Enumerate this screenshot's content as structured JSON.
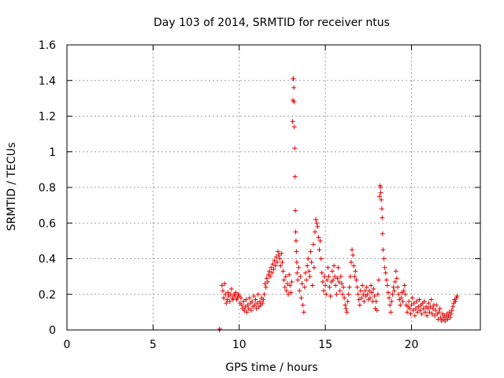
{
  "chart_data": {
    "type": "scatter",
    "title": "Day 103 of 2014, SRMTID for receiver ntus",
    "xlabel": "GPS time / hours",
    "ylabel": "SRMTID / TECUs",
    "xlim": [
      0,
      24
    ],
    "ylim": [
      0,
      1.6
    ],
    "xticks": [
      0,
      5,
      10,
      15,
      20
    ],
    "xtick_labels": [
      "0",
      "5",
      "10",
      "15",
      "20"
    ],
    "yticks": [
      0,
      0.2,
      0.4,
      0.6,
      0.8,
      1.0,
      1.2,
      1.4,
      1.6
    ],
    "ytick_labels": [
      "0",
      "0.2",
      "0.4",
      "0.6",
      "0.8",
      "1",
      "1.2",
      "1.4",
      "1.6"
    ],
    "grid": true,
    "marker": "+",
    "color": "#e00000",
    "series": [
      {
        "name": "SRMTID",
        "points": [
          [
            8.85,
            0.0
          ],
          [
            8.87,
            0.005
          ],
          [
            9.0,
            0.25
          ],
          [
            9.05,
            0.22
          ],
          [
            9.1,
            0.18
          ],
          [
            9.15,
            0.26
          ],
          [
            9.2,
            0.2
          ],
          [
            9.25,
            0.15
          ],
          [
            9.3,
            0.17
          ],
          [
            9.35,
            0.21
          ],
          [
            9.4,
            0.19
          ],
          [
            9.45,
            0.16
          ],
          [
            9.5,
            0.2
          ],
          [
            9.55,
            0.23
          ],
          [
            9.6,
            0.18
          ],
          [
            9.65,
            0.17
          ],
          [
            9.7,
            0.2
          ],
          [
            9.75,
            0.19
          ],
          [
            9.8,
            0.21
          ],
          [
            9.85,
            0.17
          ],
          [
            9.9,
            0.18
          ],
          [
            9.95,
            0.2
          ],
          [
            10.0,
            0.19
          ],
          [
            10.05,
            0.15
          ],
          [
            10.1,
            0.18
          ],
          [
            10.15,
            0.14
          ],
          [
            10.2,
            0.12
          ],
          [
            10.25,
            0.16
          ],
          [
            10.3,
            0.11
          ],
          [
            10.35,
            0.13
          ],
          [
            10.4,
            0.17
          ],
          [
            10.45,
            0.1
          ],
          [
            10.5,
            0.14
          ],
          [
            10.55,
            0.12
          ],
          [
            10.6,
            0.18
          ],
          [
            10.65,
            0.15
          ],
          [
            10.7,
            0.11
          ],
          [
            10.75,
            0.16
          ],
          [
            10.8,
            0.13
          ],
          [
            10.85,
            0.19
          ],
          [
            10.9,
            0.14
          ],
          [
            10.95,
            0.17
          ],
          [
            11.0,
            0.12
          ],
          [
            11.05,
            0.15
          ],
          [
            11.1,
            0.2
          ],
          [
            11.15,
            0.13
          ],
          [
            11.2,
            0.16
          ],
          [
            11.25,
            0.14
          ],
          [
            11.3,
            0.18
          ],
          [
            11.35,
            0.15
          ],
          [
            11.4,
            0.17
          ],
          [
            11.45,
            0.2
          ],
          [
            11.5,
            0.26
          ],
          [
            11.55,
            0.24
          ],
          [
            11.6,
            0.29
          ],
          [
            11.65,
            0.27
          ],
          [
            11.7,
            0.31
          ],
          [
            11.75,
            0.33
          ],
          [
            11.8,
            0.3
          ],
          [
            11.85,
            0.35
          ],
          [
            11.9,
            0.32
          ],
          [
            11.95,
            0.37
          ],
          [
            12.0,
            0.34
          ],
          [
            12.05,
            0.39
          ],
          [
            12.1,
            0.36
          ],
          [
            12.15,
            0.41
          ],
          [
            12.2,
            0.38
          ],
          [
            12.25,
            0.44
          ],
          [
            12.3,
            0.42
          ],
          [
            12.35,
            0.4
          ],
          [
            12.4,
            0.36
          ],
          [
            12.45,
            0.43
          ],
          [
            12.5,
            0.38
          ],
          [
            12.55,
            0.33
          ],
          [
            12.6,
            0.28
          ],
          [
            12.65,
            0.24
          ],
          [
            12.7,
            0.3
          ],
          [
            12.75,
            0.22
          ],
          [
            12.8,
            0.26
          ],
          [
            12.85,
            0.2
          ],
          [
            12.9,
            0.31
          ],
          [
            12.95,
            0.25
          ],
          [
            13.0,
            0.21
          ],
          [
            13.05,
            0.27
          ],
          [
            13.1,
            1.17
          ],
          [
            13.12,
            1.29
          ],
          [
            13.13,
            1.41
          ],
          [
            13.15,
            1.41
          ],
          [
            13.17,
            1.36
          ],
          [
            13.18,
            1.28
          ],
          [
            13.2,
            1.14
          ],
          [
            13.22,
            1.02
          ],
          [
            13.24,
            0.86
          ],
          [
            13.26,
            0.67
          ],
          [
            13.28,
            0.55
          ],
          [
            13.3,
            0.5
          ],
          [
            13.32,
            0.44
          ],
          [
            13.34,
            0.38
          ],
          [
            13.36,
            0.32
          ],
          [
            13.4,
            0.28
          ],
          [
            13.45,
            0.35
          ],
          [
            13.5,
            0.22
          ],
          [
            13.55,
            0.3
          ],
          [
            13.6,
            0.18
          ],
          [
            13.65,
            0.26
          ],
          [
            13.7,
            0.14
          ],
          [
            13.75,
            0.1
          ],
          [
            13.8,
            0.24
          ],
          [
            13.85,
            0.32
          ],
          [
            13.9,
            0.28
          ],
          [
            13.95,
            0.36
          ],
          [
            14.0,
            0.4
          ],
          [
            14.05,
            0.33
          ],
          [
            14.1,
            0.3
          ],
          [
            14.15,
            0.44
          ],
          [
            14.2,
            0.38
          ],
          [
            14.25,
            0.25
          ],
          [
            14.3,
            0.48
          ],
          [
            14.35,
            0.35
          ],
          [
            14.4,
            0.55
          ],
          [
            14.45,
            0.62
          ],
          [
            14.5,
            0.6
          ],
          [
            14.55,
            0.58
          ],
          [
            14.6,
            0.52
          ],
          [
            14.65,
            0.45
          ],
          [
            14.7,
            0.5
          ],
          [
            14.75,
            0.4
          ],
          [
            14.8,
            0.32
          ],
          [
            14.85,
            0.27
          ],
          [
            14.9,
            0.22
          ],
          [
            14.95,
            0.3
          ],
          [
            15.0,
            0.25
          ],
          [
            15.05,
            0.2
          ],
          [
            15.1,
            0.28
          ],
          [
            15.15,
            0.35
          ],
          [
            15.2,
            0.3
          ],
          [
            15.25,
            0.24
          ],
          [
            15.3,
            0.19
          ],
          [
            15.35,
            0.27
          ],
          [
            15.4,
            0.33
          ],
          [
            15.45,
            0.28
          ],
          [
            15.5,
            0.36
          ],
          [
            15.55,
            0.3
          ],
          [
            15.6,
            0.25
          ],
          [
            15.65,
            0.2
          ],
          [
            15.7,
            0.29
          ],
          [
            15.75,
            0.35
          ],
          [
            15.8,
            0.27
          ],
          [
            15.85,
            0.22
          ],
          [
            15.9,
            0.3
          ],
          [
            15.95,
            0.26
          ],
          [
            16.0,
            0.2
          ],
          [
            16.05,
            0.24
          ],
          [
            16.1,
            0.18
          ],
          [
            16.15,
            0.14
          ],
          [
            16.2,
            0.12
          ],
          [
            16.25,
            0.1
          ],
          [
            16.3,
            0.16
          ],
          [
            16.35,
            0.2
          ],
          [
            16.4,
            0.24
          ],
          [
            16.45,
            0.3
          ],
          [
            16.5,
            0.38
          ],
          [
            16.55,
            0.45
          ],
          [
            16.6,
            0.42
          ],
          [
            16.65,
            0.36
          ],
          [
            16.7,
            0.3
          ],
          [
            16.75,
            0.33
          ],
          [
            16.8,
            0.28
          ],
          [
            16.85,
            0.24
          ],
          [
            16.9,
            0.2
          ],
          [
            16.95,
            0.17
          ],
          [
            17.0,
            0.14
          ],
          [
            17.05,
            0.22
          ],
          [
            17.1,
            0.18
          ],
          [
            17.15,
            0.25
          ],
          [
            17.2,
            0.2
          ],
          [
            17.25,
            0.16
          ],
          [
            17.3,
            0.22
          ],
          [
            17.35,
            0.19
          ],
          [
            17.4,
            0.24
          ],
          [
            17.45,
            0.2
          ],
          [
            17.5,
            0.17
          ],
          [
            17.55,
            0.22
          ],
          [
            17.6,
            0.18
          ],
          [
            17.65,
            0.25
          ],
          [
            17.7,
            0.21
          ],
          [
            17.75,
            0.16
          ],
          [
            17.8,
            0.23
          ],
          [
            17.85,
            0.19
          ],
          [
            17.9,
            0.12
          ],
          [
            17.95,
            0.16
          ],
          [
            18.0,
            0.11
          ],
          [
            18.05,
            0.2
          ],
          [
            18.1,
            0.28
          ],
          [
            18.15,
            0.75
          ],
          [
            18.18,
            0.81
          ],
          [
            18.2,
            0.8
          ],
          [
            18.22,
            0.77
          ],
          [
            18.25,
            0.73
          ],
          [
            18.28,
            0.68
          ],
          [
            18.3,
            0.63
          ],
          [
            18.32,
            0.54
          ],
          [
            18.35,
            0.45
          ],
          [
            18.4,
            0.4
          ],
          [
            18.45,
            0.35
          ],
          [
            18.5,
            0.32
          ],
          [
            18.55,
            0.28
          ],
          [
            18.6,
            0.25
          ],
          [
            18.65,
            0.21
          ],
          [
            18.7,
            0.18
          ],
          [
            18.75,
            0.14
          ],
          [
            18.8,
            0.1
          ],
          [
            18.85,
            0.16
          ],
          [
            18.9,
            0.2
          ],
          [
            18.95,
            0.24
          ],
          [
            19.0,
            0.22
          ],
          [
            19.05,
            0.27
          ],
          [
            19.1,
            0.33
          ],
          [
            19.15,
            0.29
          ],
          [
            19.2,
            0.24
          ],
          [
            19.25,
            0.2
          ],
          [
            19.3,
            0.17
          ],
          [
            19.35,
            0.14
          ],
          [
            19.4,
            0.18
          ],
          [
            19.45,
            0.21
          ],
          [
            19.5,
            0.16
          ],
          [
            19.55,
            0.22
          ],
          [
            19.6,
            0.25
          ],
          [
            19.65,
            0.2
          ],
          [
            19.7,
            0.14
          ],
          [
            19.75,
            0.1
          ],
          [
            19.8,
            0.13
          ],
          [
            19.85,
            0.16
          ],
          [
            19.9,
            0.12
          ],
          [
            19.95,
            0.09
          ],
          [
            20.0,
            0.14
          ],
          [
            20.05,
            0.18
          ],
          [
            20.1,
            0.11
          ],
          [
            20.15,
            0.15
          ],
          [
            20.2,
            0.08
          ],
          [
            20.25,
            0.12
          ],
          [
            20.3,
            0.16
          ],
          [
            20.35,
            0.1
          ],
          [
            20.4,
            0.13
          ],
          [
            20.45,
            0.17
          ],
          [
            20.5,
            0.11
          ],
          [
            20.55,
            0.14
          ],
          [
            20.6,
            0.09
          ],
          [
            20.65,
            0.15
          ],
          [
            20.7,
            0.12
          ],
          [
            20.75,
            0.16
          ],
          [
            20.8,
            0.1
          ],
          [
            20.85,
            0.13
          ],
          [
            20.9,
            0.08
          ],
          [
            20.95,
            0.12
          ],
          [
            21.0,
            0.15
          ],
          [
            21.05,
            0.1
          ],
          [
            21.1,
            0.13
          ],
          [
            21.15,
            0.17
          ],
          [
            21.2,
            0.09
          ],
          [
            21.25,
            0.12
          ],
          [
            21.3,
            0.14
          ],
          [
            21.35,
            0.08
          ],
          [
            21.4,
            0.11
          ],
          [
            21.45,
            0.14
          ],
          [
            21.5,
            0.09
          ],
          [
            21.55,
            0.06
          ],
          [
            21.6,
            0.1
          ],
          [
            21.65,
            0.12
          ],
          [
            21.7,
            0.07
          ],
          [
            21.75,
            0.05
          ],
          [
            21.8,
            0.09
          ],
          [
            21.85,
            0.06
          ],
          [
            21.9,
            0.08
          ],
          [
            21.95,
            0.05
          ],
          [
            22.0,
            0.07
          ],
          [
            22.05,
            0.09
          ],
          [
            22.1,
            0.06
          ],
          [
            22.15,
            0.08
          ],
          [
            22.2,
            0.1
          ],
          [
            22.25,
            0.07
          ],
          [
            22.3,
            0.09
          ],
          [
            22.35,
            0.11
          ],
          [
            22.4,
            0.13
          ],
          [
            22.45,
            0.15
          ],
          [
            22.5,
            0.17
          ],
          [
            22.55,
            0.16
          ],
          [
            22.6,
            0.18
          ],
          [
            22.65,
            0.19
          ]
        ]
      }
    ]
  }
}
